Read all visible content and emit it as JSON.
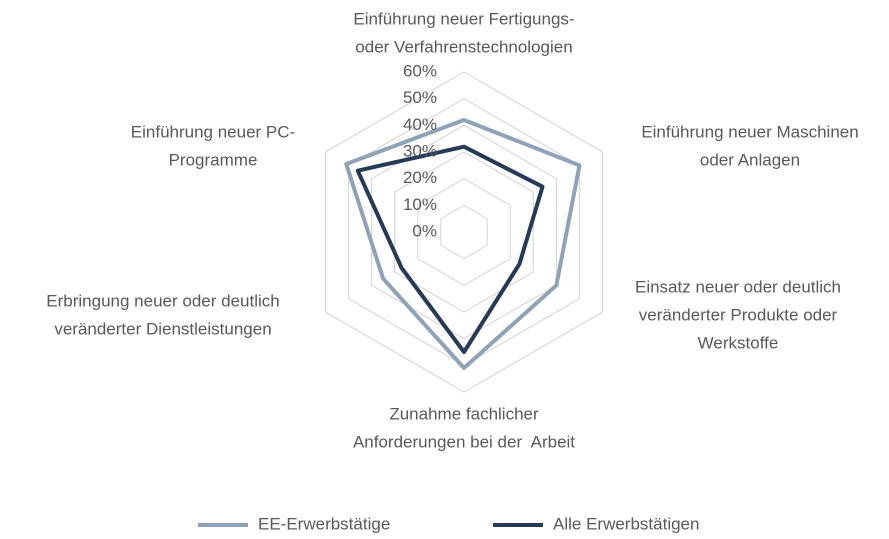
{
  "chart_data": {
    "type": "radar",
    "categories": [
      [
        "Einführung neuer Fertigungs-",
        "oder Verfahrenstechnologien"
      ],
      [
        "Einführung neuer Maschinen",
        "oder Anlagen"
      ],
      [
        "Einsatz neuer oder deutlich",
        "veränderter Produkte oder",
        "Werkstoffe"
      ],
      [
        "Zunahme fachlicher",
        "Anforderungen bei der  Arbeit"
      ],
      [
        "Erbringung neuer oder deutlich",
        "veränderter Dienstleistungen"
      ],
      [
        "Einführung neuer PC-",
        "Programme"
      ]
    ],
    "series": [
      {
        "name": "EE-Erwerbstätige",
        "color": "#8fa3b8",
        "values": [
          42,
          50,
          40,
          51,
          35,
          51
        ]
      },
      {
        "name": "Alle Erwerbstätigen",
        "color": "#243a56",
        "values": [
          32,
          34,
          24,
          45,
          27,
          46
        ]
      }
    ],
    "ylim": [
      0,
      60
    ],
    "yticks": [
      {
        "value": 0,
        "label": "0%"
      },
      {
        "value": 10,
        "label": "10%"
      },
      {
        "value": 20,
        "label": "20%"
      },
      {
        "value": 30,
        "label": "30%"
      },
      {
        "value": 40,
        "label": "40%"
      },
      {
        "value": 50,
        "label": "50%"
      },
      {
        "value": 60,
        "label": "60%"
      }
    ],
    "grid": true,
    "legend": "bottom"
  }
}
